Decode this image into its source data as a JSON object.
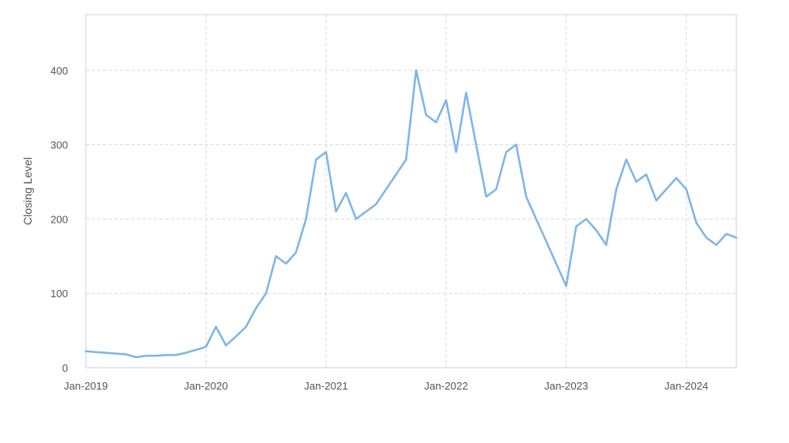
{
  "chart_data": {
    "type": "line",
    "ylabel": "Closing Level",
    "ylim": [
      0,
      475
    ],
    "xlim": [
      "2019-01",
      "2024-06"
    ],
    "grid": true,
    "y_ticks": [
      "0",
      "100",
      "200",
      "300",
      "400"
    ],
    "x_ticks": [
      {
        "label": "Jan-2019",
        "x": "2019-01"
      },
      {
        "label": "Jan-2020",
        "x": "2020-01"
      },
      {
        "label": "Jan-2021",
        "x": "2021-01"
      },
      {
        "label": "Jan-2022",
        "x": "2022-01"
      },
      {
        "label": "Jan-2023",
        "x": "2023-01"
      },
      {
        "label": "Jan-2024",
        "x": "2024-01"
      }
    ],
    "series": [
      {
        "color": "#7eb5e8",
        "x": [
          "2019-01",
          "2019-02",
          "2019-03",
          "2019-04",
          "2019-05",
          "2019-06",
          "2019-07",
          "2019-08",
          "2019-09",
          "2019-10",
          "2019-11",
          "2019-12",
          "2020-01",
          "2020-02",
          "2020-03",
          "2020-04",
          "2020-05",
          "2020-06",
          "2020-07",
          "2020-08",
          "2020-09",
          "2020-10",
          "2020-11",
          "2020-12",
          "2021-01",
          "2021-02",
          "2021-03",
          "2021-04",
          "2021-05",
          "2021-06",
          "2021-07",
          "2021-08",
          "2021-09",
          "2021-10",
          "2021-11",
          "2021-12",
          "2022-01",
          "2022-02",
          "2022-03",
          "2022-04",
          "2022-05",
          "2022-06",
          "2022-07",
          "2022-08",
          "2022-09",
          "2022-10",
          "2022-11",
          "2022-12",
          "2023-01",
          "2023-02",
          "2023-03",
          "2023-04",
          "2023-05",
          "2023-06",
          "2023-07",
          "2023-08",
          "2023-09",
          "2023-10",
          "2023-11",
          "2023-12",
          "2024-01",
          "2024-02",
          "2024-03",
          "2024-04",
          "2024-05",
          "2024-06"
        ],
        "y": [
          22,
          21,
          20,
          19,
          18,
          14,
          16,
          16,
          17,
          17,
          20,
          24,
          28,
          55,
          30,
          42,
          55,
          80,
          100,
          150,
          140,
          155,
          200,
          280,
          290,
          210,
          235,
          200,
          210,
          220,
          240,
          260,
          280,
          400,
          340,
          330,
          360,
          290,
          370,
          300,
          230,
          240,
          290,
          300,
          230,
          200,
          170,
          140,
          110,
          190,
          200,
          185,
          165,
          240,
          280,
          250,
          260,
          225,
          240,
          255,
          240,
          195,
          175,
          165,
          180,
          175
        ]
      }
    ]
  }
}
